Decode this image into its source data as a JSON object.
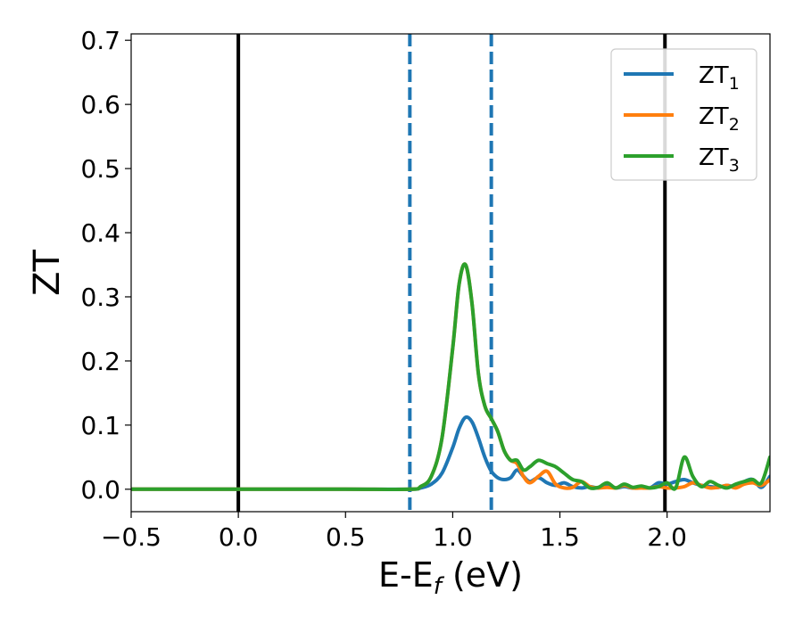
{
  "chart_data": {
    "type": "line",
    "xlabel": "E-E",
    "xlabel_sub": "f",
    "xlabel_unit": " (eV)",
    "ylabel": "ZT",
    "xlim": [
      -0.5,
      2.48
    ],
    "ylim": [
      -0.035,
      0.71
    ],
    "xticks": [
      -0.5,
      0.0,
      0.5,
      1.0,
      1.5,
      2.0
    ],
    "xtick_labels": [
      "−0.5",
      "0.0",
      "0.5",
      "1.0",
      "1.5",
      "2.0"
    ],
    "yticks": [
      0.0,
      0.1,
      0.2,
      0.3,
      0.4,
      0.5,
      0.6,
      0.7
    ],
    "ytick_labels": [
      "0.0",
      "0.1",
      "0.2",
      "0.3",
      "0.4",
      "0.5",
      "0.6",
      "0.7"
    ],
    "grid": false,
    "legend_position": "top-right",
    "vlines_solid": [
      0.0,
      1.99
    ],
    "vlines_dashed": [
      0.8,
      1.18
    ],
    "colors": {
      "vline_solid": "#000000",
      "vline_dashed": "#1f77b4"
    },
    "series": [
      {
        "name": "ZT",
        "sub": "1",
        "color": "#1f77b4",
        "x": [
          -0.5,
          0.0,
          0.5,
          0.8,
          0.85,
          0.9,
          0.95,
          1.0,
          1.03,
          1.06,
          1.09,
          1.12,
          1.15,
          1.18,
          1.21,
          1.24,
          1.27,
          1.3,
          1.33,
          1.36,
          1.4,
          1.44,
          1.48,
          1.52,
          1.56,
          1.6,
          1.64,
          1.68,
          1.72,
          1.76,
          1.8,
          1.84,
          1.88,
          1.92,
          1.96,
          2.0,
          2.04,
          2.08,
          2.12,
          2.16,
          2.2,
          2.24,
          2.28,
          2.32,
          2.36,
          2.4,
          2.44,
          2.48
        ],
        "y": [
          0.0,
          0.0,
          0.0,
          0.0,
          0.002,
          0.008,
          0.025,
          0.065,
          0.095,
          0.112,
          0.105,
          0.08,
          0.05,
          0.028,
          0.018,
          0.015,
          0.018,
          0.03,
          0.02,
          0.012,
          0.018,
          0.01,
          0.006,
          0.01,
          0.004,
          0.002,
          0.004,
          0.002,
          0.006,
          0.002,
          0.004,
          0.002,
          0.004,
          0.002,
          0.01,
          0.008,
          0.012,
          0.015,
          0.01,
          0.006,
          0.004,
          0.003,
          0.006,
          0.004,
          0.012,
          0.015,
          0.003,
          0.02
        ]
      },
      {
        "name": "ZT",
        "sub": "2",
        "color": "#ff7f0e",
        "x": [
          -0.5,
          0.0,
          0.5,
          0.8,
          0.85,
          0.9,
          0.95,
          1.0,
          1.03,
          1.06,
          1.09,
          1.12,
          1.15,
          1.18,
          1.21,
          1.24,
          1.27,
          1.3,
          1.33,
          1.36,
          1.4,
          1.44,
          1.48,
          1.52,
          1.56,
          1.6,
          1.64,
          1.68,
          1.72,
          1.76,
          1.8,
          1.84,
          1.88,
          1.92,
          1.96,
          2.0,
          2.04,
          2.08,
          2.12,
          2.16,
          2.2,
          2.24,
          2.28,
          2.32,
          2.36,
          2.4,
          2.44,
          2.48
        ],
        "y": [
          0.0,
          0.0,
          0.0,
          0.0,
          0.004,
          0.02,
          0.08,
          0.22,
          0.32,
          0.35,
          0.29,
          0.18,
          0.13,
          0.11,
          0.09,
          0.06,
          0.045,
          0.04,
          0.02,
          0.01,
          0.02,
          0.028,
          0.008,
          0.002,
          0.003,
          0.012,
          0.004,
          0.002,
          0.003,
          0.002,
          0.006,
          0.002,
          0.002,
          0.002,
          0.004,
          0.002,
          0.002,
          0.004,
          0.01,
          0.006,
          0.002,
          0.003,
          0.006,
          0.002,
          0.008,
          0.01,
          0.006,
          0.015
        ]
      },
      {
        "name": "ZT",
        "sub": "3",
        "color": "#2ca02c",
        "x": [
          -0.5,
          0.0,
          0.5,
          0.8,
          0.85,
          0.9,
          0.95,
          1.0,
          1.03,
          1.06,
          1.09,
          1.12,
          1.15,
          1.18,
          1.21,
          1.24,
          1.27,
          1.3,
          1.33,
          1.36,
          1.4,
          1.44,
          1.48,
          1.52,
          1.56,
          1.6,
          1.64,
          1.68,
          1.72,
          1.76,
          1.8,
          1.84,
          1.88,
          1.92,
          1.96,
          2.0,
          2.04,
          2.08,
          2.12,
          2.16,
          2.2,
          2.24,
          2.28,
          2.32,
          2.36,
          2.4,
          2.44,
          2.48
        ],
        "y": [
          0.0,
          0.0,
          0.0,
          0.0,
          0.004,
          0.02,
          0.08,
          0.22,
          0.32,
          0.35,
          0.29,
          0.18,
          0.13,
          0.11,
          0.09,
          0.06,
          0.045,
          0.045,
          0.03,
          0.035,
          0.045,
          0.04,
          0.035,
          0.025,
          0.015,
          0.012,
          0.002,
          0.003,
          0.01,
          0.002,
          0.008,
          0.003,
          0.005,
          0.002,
          0.004,
          0.01,
          0.002,
          0.05,
          0.02,
          0.004,
          0.012,
          0.006,
          0.002,
          0.008,
          0.012,
          0.015,
          0.01,
          0.05
        ]
      }
    ]
  }
}
